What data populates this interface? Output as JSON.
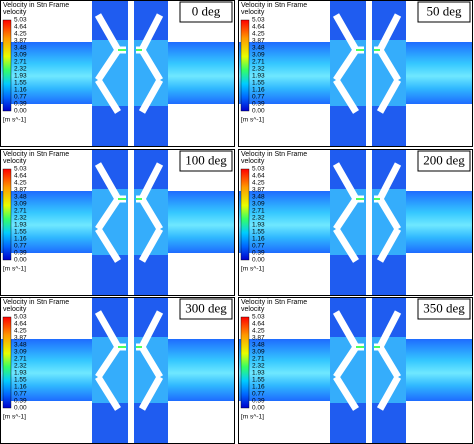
{
  "legend": {
    "title": "Velocity in Stn Frame",
    "subtitle": "velocity",
    "ticks": [
      "5.03",
      "4.64",
      "4.25",
      "3.87",
      "3.48",
      "3.09",
      "2.71",
      "2.32",
      "1.93",
      "1.55",
      "1.16",
      "0.77",
      "0.39",
      "0.00"
    ],
    "unit": "[m s^-1]"
  },
  "panels": [
    {
      "label": "0 deg"
    },
    {
      "label": "50 deg"
    },
    {
      "label": "100 deg"
    },
    {
      "label": "200 deg"
    },
    {
      "label": "300 deg"
    },
    {
      "label": "350 deg"
    }
  ]
}
